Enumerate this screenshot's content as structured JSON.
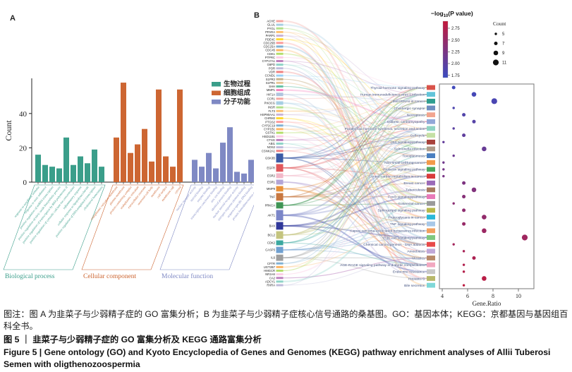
{
  "figure": {
    "panel_a_label": "A",
    "panel_b_label": "B"
  },
  "chart_data": [
    {
      "type": "bar",
      "ylabel": "Count",
      "yticks": [
        0,
        20,
        40
      ],
      "ylim": [
        0,
        60
      ],
      "legend_position": "top-right",
      "groups": [
        {
          "name_zh": "生物过程",
          "name_en": "Biological process",
          "color": "#3a9e8a",
          "categories": [
            "response to xenobiotic stimulus",
            "response to toxic substance",
            "positive regulation of miRNA transcription",
            "positive regulation of nitric oxide biosynthetic process",
            "positive regulation of transcription by RNA polymerase II",
            "positive regulation of cytosolic calcium ion concentration",
            "inflammatory response",
            "cellular response to lipopolysaccharide",
            "positive regulation of DNA-templated transcription",
            "cholesterol homeostasis"
          ],
          "values": [
            16,
            10,
            9,
            8,
            26,
            10,
            15,
            11,
            19,
            9
          ]
        },
        {
          "name_zh": "细胞组成",
          "name_en": "Cellular component",
          "color": "#cd6632",
          "categories": [
            "endoplasmic reticulum membrane",
            "plasma membrane",
            "protein-containing complex",
            "endoplasmic reticulum",
            "extracellular exosome",
            "neuronal cell body",
            "membrane",
            "cell surface",
            "membrane raft",
            "cytosol"
          ],
          "values": [
            26,
            58,
            17,
            22,
            31,
            12,
            54,
            15,
            9,
            54
          ]
        },
        {
          "name_zh": "分子功能",
          "name_en": "Molecular function",
          "color": "#7f89c4",
          "categories": [
            "nuclear receptor activity",
            "steroid binding",
            "enzyme binding",
            "transcription coactivator binding",
            "zinc ion binding",
            "identical protein binding",
            "nuclear steroid receptor activity",
            "estrogen response element binding",
            "sequence-specific DNA binding",
            "protein homodimerization activity"
          ],
          "values": [
            13,
            9,
            17,
            8,
            23,
            32,
            6,
            5,
            13,
            17
          ]
        }
      ]
    },
    {
      "type": "sankey",
      "genes": [
        "ACHE",
        "GLUL",
        "PYGL",
        "PPARA",
        "PARP1",
        "PDE4C",
        "CDC25B",
        "CDC25A",
        "CDC45",
        "CDK1",
        "PTPRC",
        "CYP17A1",
        "G6PD",
        "POR",
        "VDR",
        "CCND1",
        "S1PR2",
        "S1PR1",
        "SHH",
        "MMP1",
        "HIF1A",
        "CCR1",
        "PIK3CG",
        "INSR",
        "FLT3",
        "HSP90AA1",
        "CHRM2",
        "PTGS2",
        "CYP2C19",
        "CYP1B1",
        "GSTK1",
        "HSD11B1",
        "CTSG",
        "ABI1",
        "NOS2",
        "CSNK2A1",
        "GSK3B",
        "EGFR",
        "ESR2",
        "ESR1",
        "MMP9",
        "TNF",
        "PRKCA",
        "AKT1",
        "BAX",
        "BCL2",
        "CDK2",
        "CASP3",
        "IL6",
        "CFTR",
        "UGT2B7",
        "HMGCR",
        "NR1H4",
        "CA2",
        "ADCY1",
        "RXRA"
      ],
      "gene_weights": {
        "HIF1A": 1.5,
        "PIK3CG": 1.5,
        "GSK3B": 3.5,
        "EGFR": 3,
        "ESR2": 2,
        "ESR1": 2,
        "MMP9": 2.2,
        "TNF": 3,
        "PRKCA": 2.5,
        "AKT1": 4,
        "BAX": 3,
        "BCL2": 3,
        "CDK2": 2,
        "CASP3": 2.5,
        "IL6": 2.5
      },
      "gene_colors": {
        "GSK3B": "#3b5ba5",
        "EGFR": "#e0575b",
        "ESR2": "#f2b8c8",
        "ESR1": "#b3a5d6",
        "MMP9": "#e8913a",
        "TNF": "#c87840",
        "PRKCA": "#3f9454",
        "AKT1": "#7b86c8",
        "BAX": "#30389a",
        "BCL2": "#c4c47e",
        "CDK2": "#3aa8a0",
        "CASP3": "#70a0d0",
        "IL6": "#9e9e9e"
      },
      "gene_palette": [
        "#f4a6a0",
        "#a6cee3",
        "#b2df8a",
        "#fdbf6f",
        "#cab2d6",
        "#ffd92f",
        "#fb9a99",
        "#80b1d3",
        "#fdb462",
        "#b3de69",
        "#fccde5",
        "#bc80bd",
        "#8dd3c7",
        "#bebada",
        "#f08080",
        "#9ad0f5",
        "#c9b38c",
        "#e5c494",
        "#66c2a5",
        "#f781bf",
        "#b0c4de"
      ],
      "pathways": [
        "Thyroid hormone signaling pathway",
        "Human immunodeficiency virus 1 infection",
        "MicroRNAs in cancer",
        "Cholinergic synapse",
        "Necroptosis",
        "Diabetic cardiomyopathy",
        "Parathyroid hormone synthesis, secretion and action",
        "Cell cycle",
        "p53 signaling pathway",
        "Salmonella infection",
        "Toxoplasmosis",
        "Non-small cell lung cancer",
        "Prolactin signaling pathway",
        "Central carbon metabolism in cancer",
        "Breast cancer",
        "Tuberculosis",
        "FoxO signaling pathway",
        "Colorectal cancer",
        "Sphingolipid signaling pathway",
        "Proteoglycans in cancer",
        "TNF signaling pathway",
        "Kaposi sarcoma-associated herpesvirus infection",
        "PI3K-Akt signaling pathway",
        "Chemical carcinogenesis - DNA adducts",
        "Amoebiasis",
        "Measles",
        "AGE-RAGE signaling pathway in diabetic complications",
        "Endocrine resistance",
        "Hepatitis B",
        "Bile secretion"
      ],
      "pathway_colors": [
        "#d9534a",
        "#62c4d9",
        "#2f9e8f",
        "#6f8fc0",
        "#f2a58f",
        "#93a8d8",
        "#8fd4c4",
        "#c5e0a5",
        "#a8423c",
        "#b09a88",
        "#4a7fc0",
        "#f29a4a",
        "#4aa85f",
        "#d93c3c",
        "#9a6ab8",
        "#a87a5f",
        "#e87ab8",
        "#9a9a9a",
        "#b8b84a",
        "#2ab8d8",
        "#a8c8e8",
        "#f2a05f",
        "#7fc87f",
        "#e84a4a",
        "#c0a8d8",
        "#b88a6a",
        "#f2a8c0",
        "#c8c8c8",
        "#b8b86a",
        "#7fd8d8"
      ]
    },
    {
      "type": "scatter",
      "xlabel": "Gene.Ratio",
      "xticks": [
        4,
        6,
        8,
        10
      ],
      "xlim": [
        3.7,
        11.4
      ],
      "rows_note": "rows follow same pathway order as sankey pathways",
      "gene_ratio": [
        4.9,
        6.5,
        8.1,
        4.9,
        5.7,
        6.5,
        4.9,
        5.7,
        4.1,
        7.3,
        4.9,
        4.1,
        4.1,
        4.1,
        5.7,
        6.5,
        5.7,
        4.9,
        5.7,
        7.3,
        5.7,
        7.3,
        10.5,
        4.9,
        5.7,
        6.5,
        5.7,
        5.7,
        7.3,
        5.7
      ],
      "count": [
        7,
        9,
        11,
        5,
        7,
        7,
        5,
        7,
        5,
        9,
        5,
        5,
        5,
        5,
        7,
        9,
        7,
        5,
        7,
        9,
        7,
        9,
        11,
        5,
        5,
        7,
        5,
        5,
        9,
        5
      ],
      "neg_log10_p": [
        1.75,
        1.79,
        1.83,
        1.86,
        1.9,
        1.94,
        1.98,
        2.02,
        2.05,
        2.09,
        2.13,
        2.17,
        2.21,
        2.24,
        2.28,
        2.32,
        2.36,
        2.4,
        2.43,
        2.47,
        2.51,
        2.55,
        2.58,
        2.62,
        2.66,
        2.7,
        2.74,
        2.77,
        2.81,
        2.85
      ],
      "legend_color": {
        "title_parts": {
          "prefix": "−log",
          "sub": "10",
          "suffix": "(P value)"
        },
        "ticks": [
          2.75,
          2.5,
          2.25,
          2.0,
          1.75
        ],
        "range": [
          1.7,
          2.9
        ],
        "color_low": "#3b4cc0",
        "color_high": "#c3193c"
      },
      "legend_size": {
        "title": "Count",
        "values": [
          5,
          7,
          9,
          11
        ]
      }
    }
  ],
  "caption": {
    "note": "图注：图 A 为韭菜子与少弱精子症的 GO 富集分析；B 为韭菜子与少弱精子症核心信号通路的桑基图。GO：基因本体；KEGG：京都基因与基因组百科全书。",
    "fig_zh": "图 5 ｜ 韭菜子与少弱精子症的 GO 富集分析及 KEGG 通路富集分析",
    "fig_en": "Figure 5  |  Gene ontology (GO) and Kyoto Encyclopedia of Genes and Genomes (KEGG) pathway enrichment analyses of Allii Tuberosi Semen with oligthenozoospermia"
  }
}
